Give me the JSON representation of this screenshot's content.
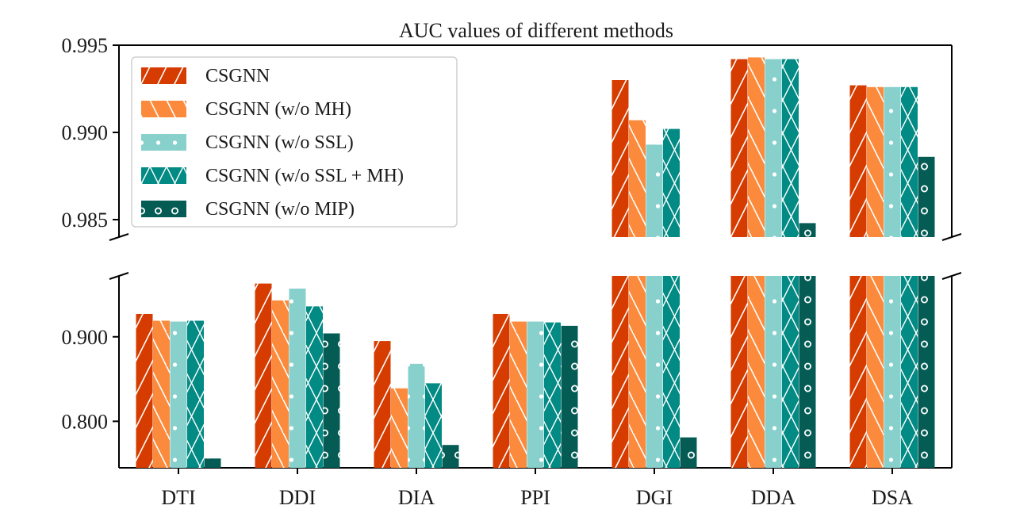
{
  "chart_data": {
    "type": "bar",
    "title": "AUC values of different methods",
    "categories": [
      "DTI",
      "DDI",
      "DIA",
      "PPI",
      "DGI",
      "DDA",
      "DSA"
    ],
    "broken_axis": true,
    "upper_panel": {
      "ylim": [
        0.984,
        0.995
      ],
      "yticks": [
        "0.985",
        "0.990",
        "0.995"
      ]
    },
    "lower_panel": {
      "ylim": [
        0.745,
        0.972
      ],
      "yticks": [
        "0.800",
        "0.900"
      ]
    },
    "legend_position": "top-left",
    "series": [
      {
        "name": "CSGNN",
        "color": "#d63c00",
        "pattern": "diagonal-lines",
        "values": [
          0.927,
          0.963,
          0.895,
          0.927,
          0.993,
          0.9942,
          0.9927
        ]
      },
      {
        "name": "CSGNN (w/o MH)",
        "color": "#fb8a3c",
        "pattern": "back-diagonal-lines",
        "values": [
          0.919,
          0.943,
          0.839,
          0.918,
          0.9907,
          0.9943,
          0.9926
        ]
      },
      {
        "name": "CSGNN (w/o SSL)",
        "color": "#88d0cc",
        "pattern": "small-dots",
        "values": [
          0.918,
          0.957,
          0.868,
          0.918,
          0.9893,
          0.9942,
          0.9926
        ]
      },
      {
        "name": "CSGNN (w/o SSL + MH)",
        "color": "#028a84",
        "pattern": "crosses",
        "values": [
          0.919,
          0.936,
          0.845,
          0.917,
          0.9902,
          0.9942,
          0.9926
        ]
      },
      {
        "name": "CSGNN (w/o MIP)",
        "color": "#045c55",
        "pattern": "open-circles",
        "values": [
          0.756,
          0.904,
          0.772,
          0.913,
          0.781,
          0.9848,
          0.9886
        ]
      }
    ]
  }
}
